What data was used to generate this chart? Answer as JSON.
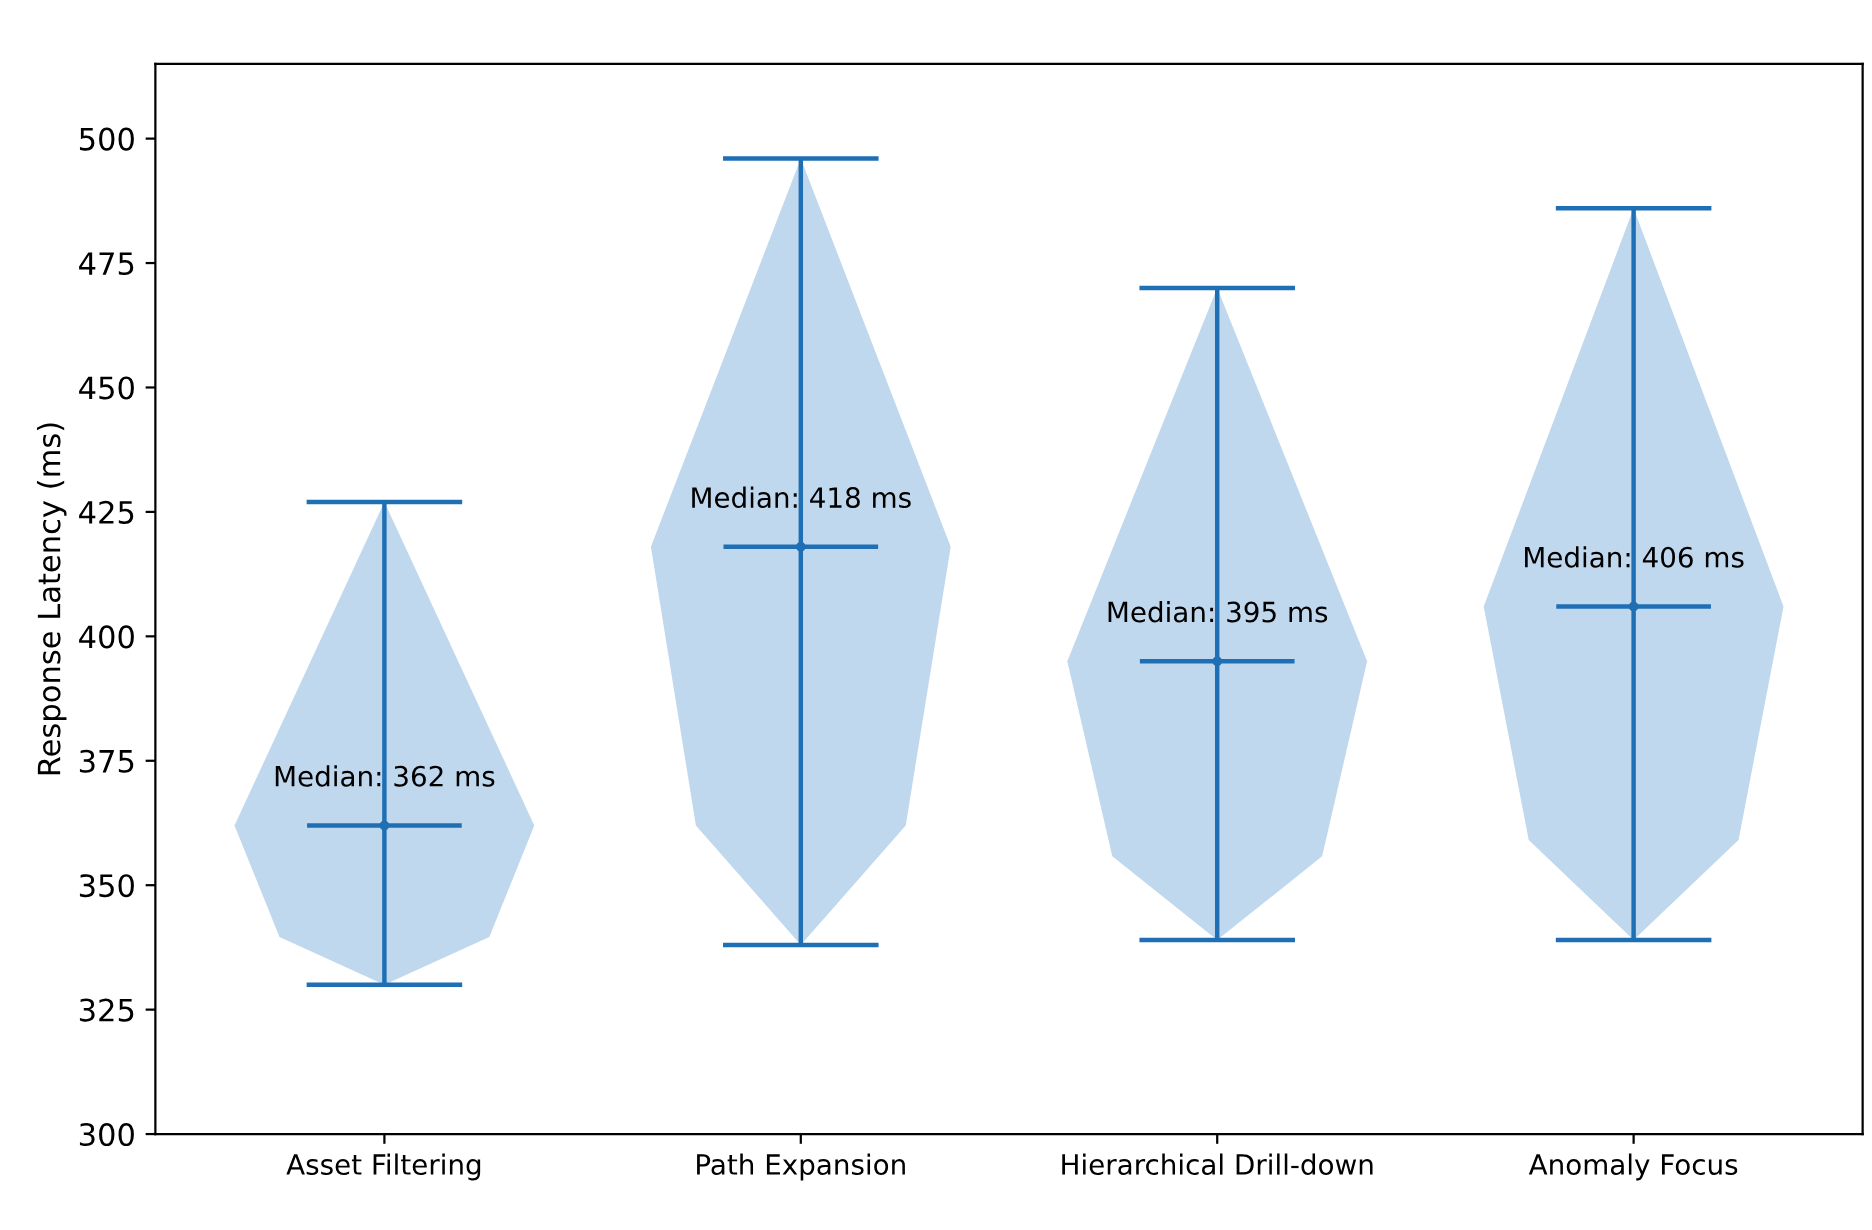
{
  "chart_data": {
    "type": "scatter",
    "ylabel": "Response Latency (ms)",
    "categories": [
      "Asset Filtering",
      "Path Expansion",
      "Hierarchical Drill-down",
      "Anomaly Focus"
    ],
    "values": [
      362,
      418,
      395,
      406
    ],
    "errors": [
      [
        330,
        427
      ],
      [
        338,
        496
      ],
      [
        339,
        470
      ],
      [
        339,
        486
      ]
    ],
    "color": "#1f6fb4",
    "marker": "circle",
    "ylim": [
      300,
      515
    ],
    "yticks": [
      300,
      325,
      350,
      375,
      400,
      425,
      450,
      475,
      500
    ],
    "annotations": [
      "Median: 362 ms",
      "Median: 418 ms",
      "Median: 395 ms",
      "Median: 406 ms"
    ]
  }
}
